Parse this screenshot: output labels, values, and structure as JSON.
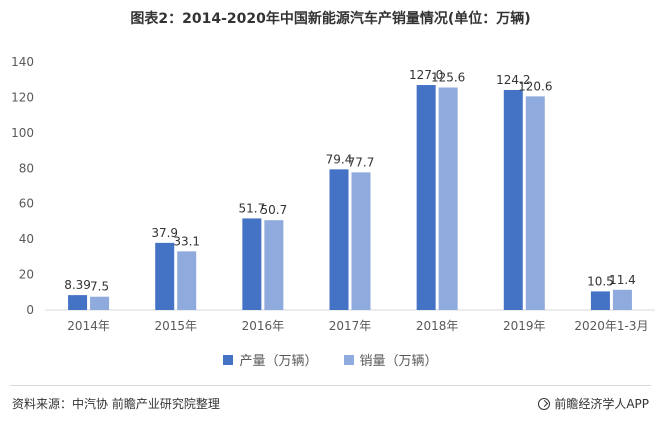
{
  "chart_data": {
    "type": "bar",
    "title": "图表2：2014-2020年中国新能源汽车产销量情况(单位：万辆)",
    "categories": [
      "2014年",
      "2015年",
      "2016年",
      "2017年",
      "2018年",
      "2019年",
      "2020年1-3月"
    ],
    "series": [
      {
        "name": "产量（万辆）",
        "color": "#4472c4",
        "values": [
          8.39,
          37.9,
          51.7,
          79.4,
          127.0,
          124.2,
          10.5
        ],
        "labels": [
          "8.39",
          "37.9",
          "51.7",
          "79.4",
          "127.0",
          "124.2",
          "10.5"
        ]
      },
      {
        "name": "销量（万辆）",
        "color": "#8faadc",
        "values": [
          7.5,
          33.1,
          50.7,
          77.7,
          125.6,
          120.6,
          11.4
        ],
        "labels": [
          "7.5",
          "33.1",
          "50.7",
          "77.7",
          "125.6",
          "120.6",
          "11.4"
        ]
      }
    ],
    "ylim": [
      0,
      140
    ],
    "yticks": [
      0,
      20,
      40,
      60,
      80,
      100,
      120,
      140
    ],
    "xlabel": "",
    "ylabel": "",
    "grid": false,
    "legend": "bottom-center"
  },
  "footer": {
    "source": "资料来源：中汽协 前瞻产业研究院整理",
    "brand": "前瞻经济学人APP"
  }
}
